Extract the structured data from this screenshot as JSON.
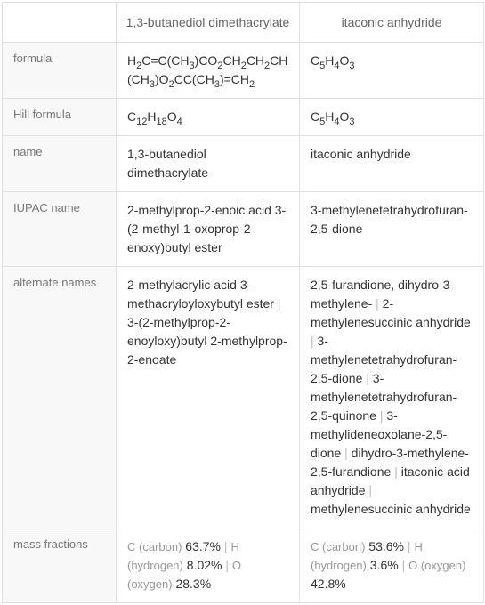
{
  "headers": {
    "col1": "1,3-butanediol dimethacrylate",
    "col2": "itaconic anhydride"
  },
  "rows": {
    "formula": {
      "label": "formula",
      "col1_parts": [
        "H",
        "2",
        "C=C(CH",
        "3",
        ")CO",
        "2",
        "CH",
        "2",
        "CH",
        "2",
        "CH(CH",
        "3",
        ")O",
        "2",
        "CC(CH",
        "3",
        ")=CH",
        "2"
      ],
      "col2_parts": [
        "C",
        "5",
        "H",
        "4",
        "O",
        "3"
      ]
    },
    "hill": {
      "label": "Hill formula",
      "col1_parts": [
        "C",
        "12",
        "H",
        "18",
        "O",
        "4"
      ],
      "col2_parts": [
        "C",
        "5",
        "H",
        "4",
        "O",
        "3"
      ]
    },
    "name": {
      "label": "name",
      "col1": "1,3-butanediol dimethacrylate",
      "col2": "itaconic anhydride"
    },
    "iupac": {
      "label": "IUPAC name",
      "col1": "2-methylprop-2-enoic acid 3-(2-methyl-1-oxoprop-2-enoxy)butyl ester",
      "col2": "3-methylenetetrahydrofuran-2,5-dione"
    },
    "alternate": {
      "label": "alternate names",
      "col1_items": [
        "2-methylacrylic acid 3-methacryloyloxybutyl ester",
        "3-(2-methylprop-2-enoyloxy)butyl 2-methylprop-2-enoate"
      ],
      "col2_items": [
        "2,5-furandione, dihydro-3-methylene-",
        "2-methylenesuccinic anhydride",
        "3-methylenetetrahydrofuran-2,5-dione",
        "3-methylenetetrahydrofuran-2,5-quinone",
        "3-methylideneoxolane-2,5-dione",
        "dihydro-3-methylene-2,5-furandione",
        "itaconic acid anhydride",
        "methylenesuccinic anhydride"
      ]
    },
    "mass": {
      "label": "mass fractions",
      "col1": {
        "c_label": "C (carbon)",
        "c_val": "63.7%",
        "h_label": "H (hydrogen)",
        "h_val": "8.02%",
        "o_label": "O (oxygen)",
        "o_val": "28.3%"
      },
      "col2": {
        "c_label": "C (carbon)",
        "c_val": "53.6%",
        "h_label": "H (hydrogen)",
        "h_val": "3.6%",
        "o_label": "O (oxygen)",
        "o_val": "42.8%"
      }
    }
  },
  "styling": {
    "border_color": "#e0e0e0",
    "label_bg": "#f8f8f8",
    "label_color": "#777",
    "header_color": "#666",
    "text_color": "#333",
    "gray_text": "#999",
    "sep_color": "#bbb",
    "font_size": 14,
    "label_font_size": 13,
    "sub_font_size": 11
  }
}
